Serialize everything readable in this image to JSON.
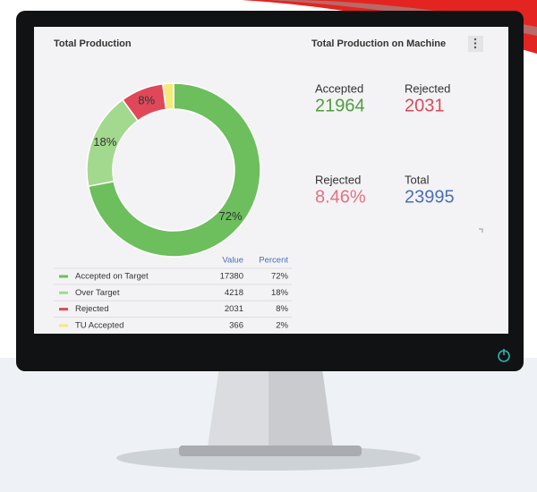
{
  "chart_data": {
    "type": "donut",
    "title": "Total Production",
    "categories": [
      "Accepted on Target",
      "Over Target",
      "Rejected",
      "TU Accepted"
    ],
    "values": [
      72,
      18,
      8,
      2
    ],
    "value_labels": [
      "72%",
      "18%",
      "8%",
      null
    ],
    "colors": [
      "#6cbf5c",
      "#a3d98e",
      "#e0485a",
      "#f5e97c"
    ]
  },
  "table": {
    "headers": [
      "Value",
      "Percent"
    ],
    "rows": [
      [
        "17380",
        "72%"
      ],
      [
        "4218",
        "18%"
      ],
      [
        "2031",
        "8%"
      ],
      [
        "366",
        "2%"
      ]
    ]
  },
  "kpi_panel": {
    "title": "Total Production on Machine",
    "kpis": [
      {
        "label": "Accepted",
        "value": "21964",
        "color": "#4f9e3f"
      },
      {
        "label": "Rejected",
        "value": "2031",
        "color": "#d94a5c"
      },
      {
        "label": "Rejected",
        "value": "8.46%",
        "color": "#e66f82"
      },
      {
        "label": "Total",
        "value": "23995",
        "color": "#4a6fb5"
      }
    ]
  }
}
